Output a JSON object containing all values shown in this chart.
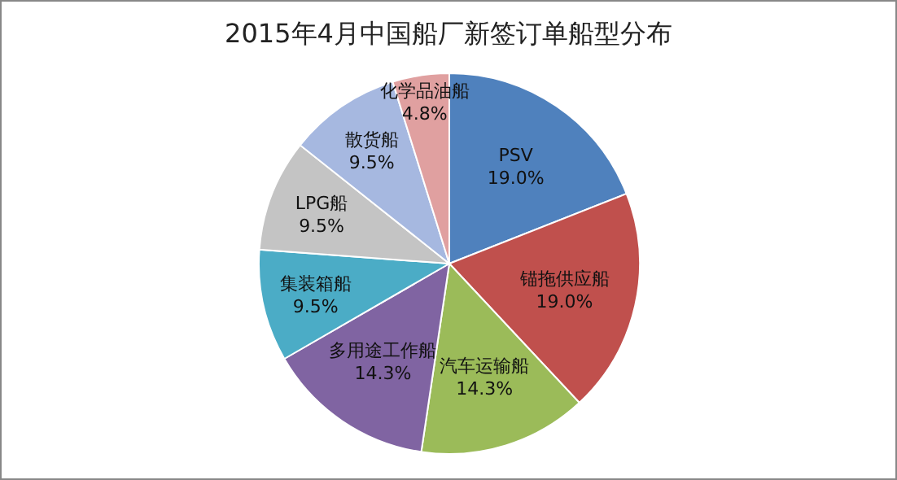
{
  "chart_data": {
    "type": "pie",
    "title": "2015年4月中国船厂新签订单船型分布",
    "categories": [
      "PSV",
      "锚拖供应船",
      "汽车运输船",
      "多用途工作船",
      "集装箱船",
      "LPG船",
      "散货船",
      "化学品油船"
    ],
    "values": [
      19.0,
      19.0,
      14.3,
      14.3,
      9.5,
      9.5,
      9.5,
      4.8
    ],
    "value_labels": [
      "19.0%",
      "19.0%",
      "14.3%",
      "14.3%",
      "9.5%",
      "9.5%",
      "9.5%",
      "4.8%"
    ],
    "colors": [
      "#4f81bd",
      "#c0504d",
      "#9bbb59",
      "#8064a2",
      "#4bacc6",
      "#c4c4c4",
      "#a6b8e0",
      "#e0a0a0"
    ]
  }
}
